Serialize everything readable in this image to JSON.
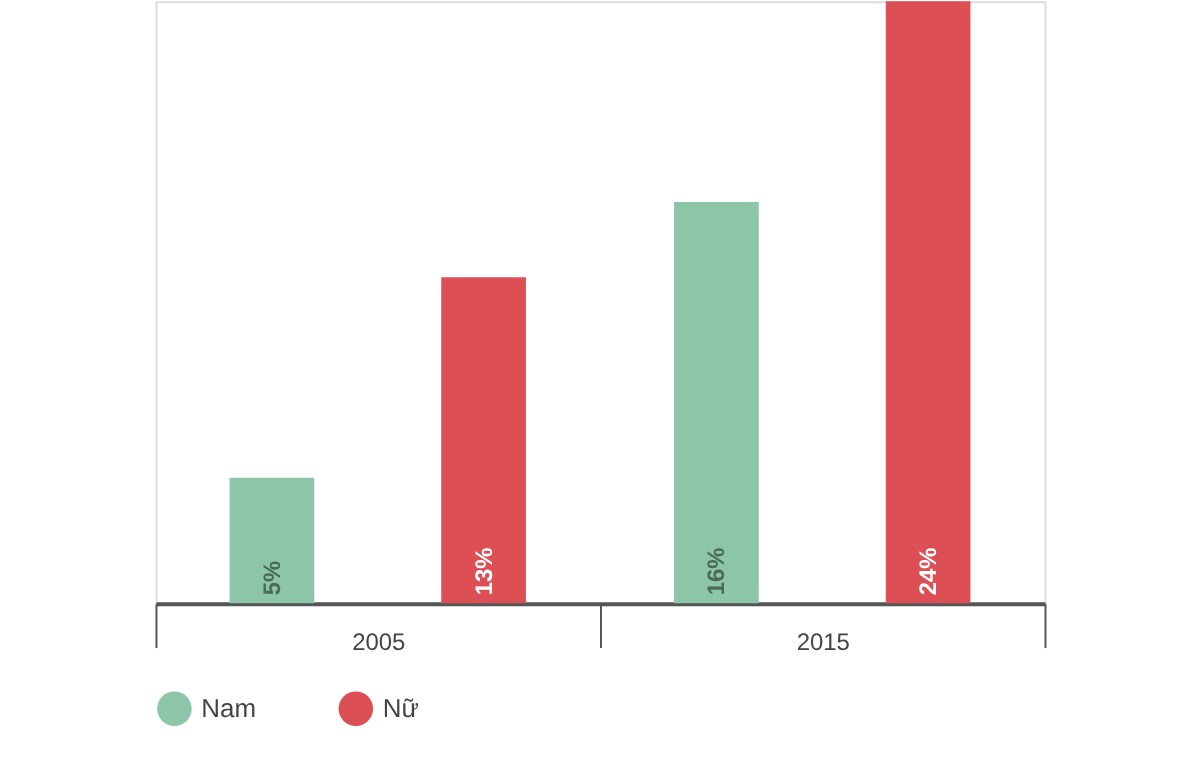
{
  "chart_data": {
    "type": "bar",
    "categories": [
      "2005",
      "2015"
    ],
    "series": [
      {
        "name": "Nam",
        "color": "#8dc5a8",
        "values": [
          5,
          16
        ],
        "value_labels": [
          "5%",
          "16%"
        ]
      },
      {
        "name": "Nữ",
        "color": "#dc4f55",
        "values": [
          13,
          24
        ],
        "value_labels": [
          "13%",
          "24%"
        ]
      }
    ],
    "legend": "bottom",
    "grid": false
  }
}
